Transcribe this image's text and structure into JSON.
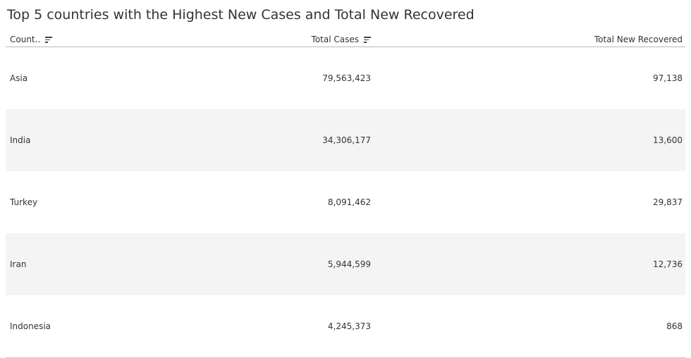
{
  "title": "Top 5 countries with the Highest New Cases and Total New Recovered",
  "chart_data": {
    "type": "table",
    "columns": [
      "Count..",
      "Total Cases",
      "Total New Recovered"
    ],
    "rows": [
      {
        "country": "Asia",
        "total_cases": "79,563,423",
        "total_new_recovered": "97,138"
      },
      {
        "country": "India",
        "total_cases": "34,306,177",
        "total_new_recovered": "13,600"
      },
      {
        "country": "Turkey",
        "total_cases": "8,091,462",
        "total_new_recovered": "29,837"
      },
      {
        "country": "Iran",
        "total_cases": "5,944,599",
        "total_new_recovered": "12,736"
      },
      {
        "country": "Indonesia",
        "total_cases": "4,245,373",
        "total_new_recovered": "868"
      }
    ]
  },
  "icons": {
    "sort": "sort-descending-icon"
  },
  "colors": {
    "text": "#333333",
    "row_shade": "#f4f4f4",
    "rule": "#b8b8b8"
  }
}
